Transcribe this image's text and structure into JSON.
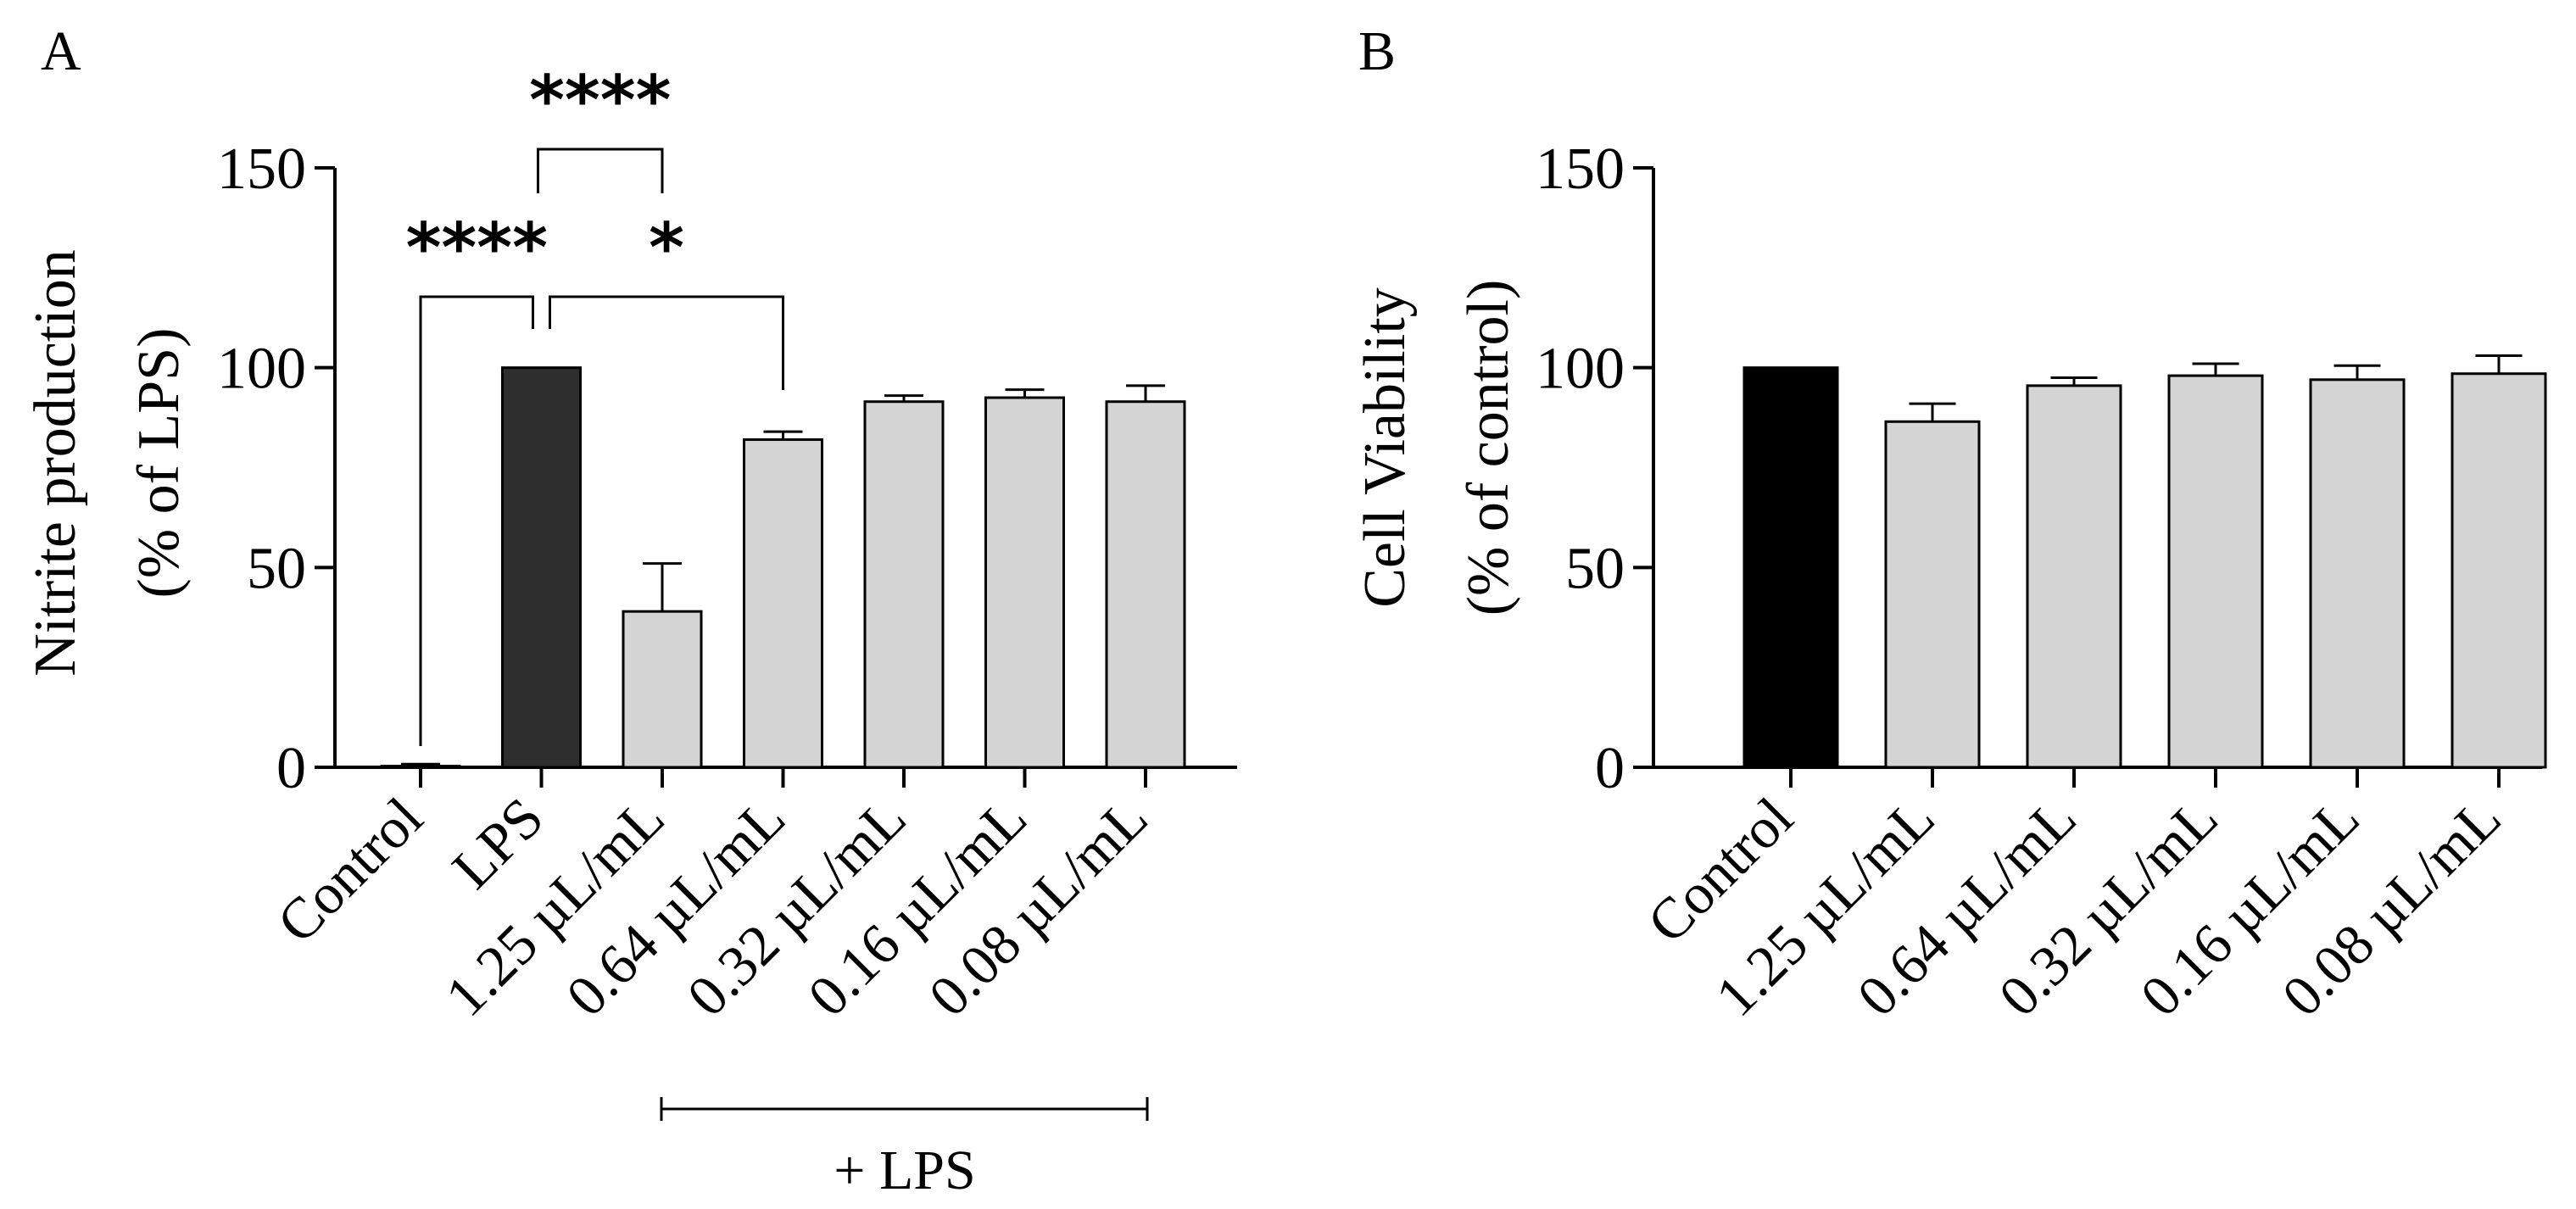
{
  "chart_data": [
    {
      "panel": "A",
      "type": "bar",
      "ylabel_line1": "Nitrite production",
      "ylabel_line2": "(% of LPS)",
      "ylim": [
        0,
        150
      ],
      "yticks": [
        "0",
        "50",
        "100",
        "150"
      ],
      "categories": [
        "Control",
        "LPS",
        "1.25 µL/mL",
        "0.64 µL/mL",
        "0.32 µL/mL",
        "0.16 µL/mL",
        "0.08 µL/mL"
      ],
      "values": [
        0.3,
        100,
        39,
        82,
        91.5,
        92.5,
        91.5
      ],
      "errors": [
        0.5,
        0,
        12,
        2,
        1.5,
        2,
        4
      ],
      "bar_colors": [
        "#d4d4d4",
        "#2e2e2e",
        "#d4d4d4",
        "#d4d4d4",
        "#d4d4d4",
        "#d4d4d4",
        "#d4d4d4"
      ],
      "significance": [
        {
          "from": 1,
          "to": 2,
          "label": "****"
        },
        {
          "from": 0,
          "to": 1,
          "label": "****"
        },
        {
          "from": 1,
          "to": 3,
          "label": "*"
        }
      ],
      "group_label": "+ LPS",
      "group_from": 2,
      "group_to": 6
    },
    {
      "panel": "B",
      "type": "bar",
      "ylabel_line1": "Cell Viability",
      "ylabel_line2": "(% of control)",
      "ylim": [
        0,
        150
      ],
      "yticks": [
        "0",
        "50",
        "100",
        "150"
      ],
      "categories": [
        "Control",
        "1.25 µL/mL",
        "0.64 µL/mL",
        "0.32 µL/mL",
        "0.16 µL/mL",
        "0.08 µL/mL"
      ],
      "values": [
        100,
        86.5,
        95.5,
        98,
        97,
        98.5
      ],
      "errors": [
        0,
        4.5,
        2,
        3,
        3.5,
        4.5
      ],
      "bar_colors": [
        "#000000",
        "#d4d4d4",
        "#d4d4d4",
        "#d4d4d4",
        "#d4d4d4",
        "#d4d4d4"
      ]
    }
  ]
}
